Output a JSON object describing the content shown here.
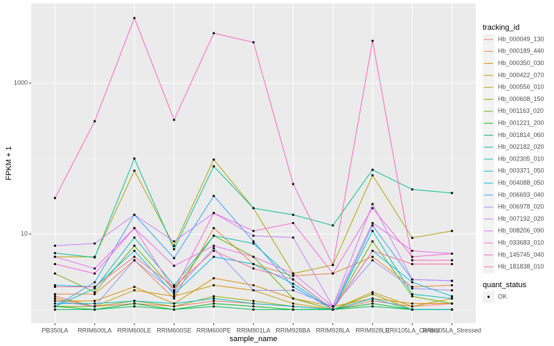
{
  "chart_data": {
    "type": "line",
    "log_y": true,
    "grid": true,
    "xlabel": "sample_name",
    "ylabel": "FPKM + 1",
    "categories": [
      "PB350LA",
      "RRIM600LA",
      "RRIM600LE",
      "RRIM600SE",
      "RRIM600PE",
      "RRIM901LA",
      "RRIM928BA",
      "RRIM928LA",
      "RRIM928LE",
      "RRII105LA_Control",
      "RRII105LA_Stressed"
    ],
    "ylim": [
      0.66,
      11350
    ],
    "yticks": [
      10,
      1000
    ],
    "legend": {
      "title": "tracking_id",
      "position": "right"
    },
    "shape_legend": {
      "title": "quant_status",
      "labels": [
        "OK"
      ]
    },
    "series": [
      {
        "name": "Hb_000049_130",
        "color": "#F8766D",
        "values": [
          1.5,
          1.1,
          1.2,
          1.1,
          1.3,
          1.2,
          1.1,
          1.0,
          1.3,
          1.1,
          1.2
        ]
      },
      {
        "name": "Hb_000189_440",
        "color": "#EC8239",
        "values": [
          1.6,
          1.6,
          4.5,
          1.4,
          12,
          4,
          2.8,
          3.0,
          5,
          2,
          2.1
        ]
      },
      {
        "name": "Hb_000350_030",
        "color": "#DB8E00",
        "values": [
          1.3,
          1.3,
          2.0,
          1.2,
          2.6,
          2.1,
          1.4,
          1.1,
          1.4,
          1.2,
          1.2
        ]
      },
      {
        "name": "Hb_000422_070",
        "color": "#C79800",
        "values": [
          1.4,
          1.1,
          1.8,
          1.5,
          2.1,
          1.8,
          1.2,
          1.0,
          1.7,
          1.1,
          1.4
        ]
      },
      {
        "name": "Hb_000556_010",
        "color": "#AEA200",
        "values": [
          5,
          5,
          69,
          7,
          97,
          22,
          3,
          3.9,
          60,
          8.9,
          11
        ]
      },
      {
        "name": "Hb_000608_150",
        "color": "#8FAA00",
        "values": [
          1.1,
          1.1,
          1.3,
          1.1,
          1.5,
          1.3,
          1.1,
          1.0,
          1.6,
          1.0,
          1.0
        ]
      },
      {
        "name": "Hb_001163_020",
        "color": "#64B200",
        "values": [
          3,
          1.7,
          7,
          1.8,
          9.5,
          5,
          1.4,
          1.0,
          8,
          1.5,
          1.2
        ]
      },
      {
        "name": "Hb_001221_200",
        "color": "#00B81B",
        "values": [
          1.1,
          1.0,
          1.2,
          1.0,
          1.2,
          1.1,
          1.0,
          1.0,
          1.2,
          1.0,
          1.0
        ]
      },
      {
        "name": "Hb_001814_060",
        "color": "#00BD5C",
        "values": [
          1.0,
          1.0,
          1.1,
          1.0,
          1.1,
          1.0,
          1.0,
          1.0,
          1.1,
          1.0,
          1.0
        ]
      },
      {
        "name": "Hb_002182_020",
        "color": "#00C08D",
        "values": [
          5.6,
          4.9,
          100,
          6.3,
          79,
          22,
          18,
          13,
          71,
          39,
          35
        ]
      },
      {
        "name": "Hb_002305_010",
        "color": "#00C1B2",
        "values": [
          1.1,
          1.9,
          9,
          2.1,
          9.5,
          7.5,
          2.5,
          1.0,
          11,
          1.6,
          1.4
        ]
      },
      {
        "name": "Hb_003371_050",
        "color": "#00BFD1",
        "values": [
          1.2,
          1.2,
          1.3,
          1.2,
          1.4,
          1.2,
          1.1,
          1.0,
          1.4,
          1.0,
          1.0
        ]
      },
      {
        "name": "Hb_004088_050",
        "color": "#00BAE9",
        "values": [
          2.1,
          2.0,
          6,
          1.6,
          5,
          4,
          2.2,
          1.0,
          6,
          2.3,
          1.5
        ]
      },
      {
        "name": "Hb_006693_040",
        "color": "#35A2FF",
        "values": [
          1.1,
          2.3,
          18,
          4.8,
          32,
          8,
          2,
          1.0,
          13,
          2.5,
          2.4
        ]
      },
      {
        "name": "Hb_006978_020",
        "color": "#9590FF",
        "values": [
          1.3,
          1.1,
          4.5,
          1.7,
          6.5,
          1.8,
          1.8,
          1.1,
          4.5,
          1.9,
          1.8
        ]
      },
      {
        "name": "Hb_007192_020",
        "color": "#C77CFF",
        "values": [
          7,
          7.5,
          18,
          8,
          19,
          9.5,
          9,
          1.1,
          25,
          2.5,
          2.4
        ]
      },
      {
        "name": "Hb_008206_090",
        "color": "#E76BF3",
        "values": [
          5,
          3.5,
          12,
          3.8,
          7,
          5,
          3,
          1.1,
          14,
          6,
          5.5
        ]
      },
      {
        "name": "Hb_033683_010",
        "color": "#FA62DB",
        "values": [
          4,
          3,
          12,
          1.8,
          19,
          11,
          14,
          3,
          22,
          5,
          5.5
        ]
      },
      {
        "name": "Hb_145745_040",
        "color": "#FF62BC",
        "values": [
          30,
          312,
          7280,
          326,
          4580,
          3470,
          46,
          3.9,
          3630,
          4.5,
          4.5
        ]
      },
      {
        "name": "Hb_181838_010",
        "color": "#FF6A98",
        "values": [
          2,
          2,
          5,
          2,
          6,
          3.5,
          2.5,
          1.0,
          6,
          4,
          4
        ]
      }
    ]
  }
}
